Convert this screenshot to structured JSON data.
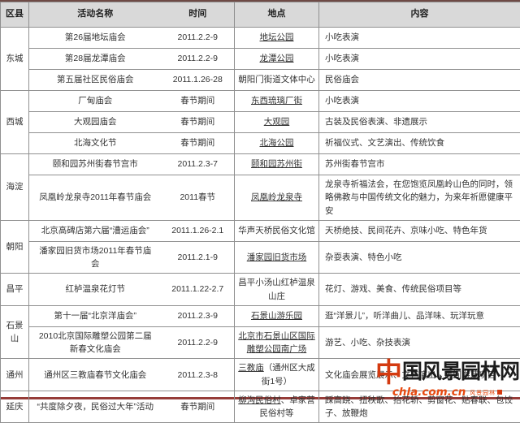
{
  "theme": {
    "header_bg": "#d9d9d9",
    "grid_border": "#909090",
    "bottom_rule": "#963c38",
    "text": "#333333",
    "link": "#333333",
    "watermark_accent": "#d43a10",
    "watermark_url_color": "#e8490f",
    "watermark_ink": "#1c1c1c"
  },
  "table": {
    "headers": [
      "区县",
      "活动名称",
      "时间",
      "地点",
      "内容"
    ],
    "groups": [
      {
        "district": "东城",
        "rows": [
          {
            "name": "第26届地坛庙会",
            "time": "2011.2.2-9",
            "place": [
              {
                "text": "地坛公园",
                "link": true
              }
            ],
            "content": "小吃表演"
          },
          {
            "name": "第28届龙潭庙会",
            "time": "2011.2.2-9",
            "place": [
              {
                "text": "龙潭公园",
                "link": true
              }
            ],
            "content": "小吃表演"
          },
          {
            "name": "第五届社区民俗庙会",
            "time": "2011.1.26-28",
            "place": [
              {
                "text": "朝阳门街道文体中心",
                "link": false
              }
            ],
            "content": "民俗庙会"
          }
        ]
      },
      {
        "district": "西城",
        "rows": [
          {
            "name": "厂甸庙会",
            "time": "春节期间",
            "place": [
              {
                "text": "东西琉璃厂街",
                "link": true
              }
            ],
            "content": "小吃表演"
          },
          {
            "name": "大观园庙会",
            "time": "春节期间",
            "place": [
              {
                "text": "大观园",
                "link": true
              }
            ],
            "content": "古装及民俗表演、非遗展示"
          },
          {
            "name": "北海文化节",
            "time": "春节期间",
            "place": [
              {
                "text": "北海公园",
                "link": true
              }
            ],
            "content": "祈福仪式、文艺演出、传统饮食"
          }
        ]
      },
      {
        "district": "海淀",
        "rows": [
          {
            "name": "颐和园苏州街春节宫市",
            "time": "2011.2.3-7",
            "place": [
              {
                "text": "颐和园苏州街",
                "link": true
              }
            ],
            "content": "苏州街春节宫市"
          },
          {
            "name": "凤凰岭龙泉寺2011年春节庙会",
            "time": "2011春节",
            "place": [
              {
                "text": "凤凰岭龙泉寺",
                "link": true
              }
            ],
            "content": "龙泉寺祈福法会，在您饱览凤凰岭山色的同时，领略佛教与中国传统文化的魅力，为来年祈愿健康平安"
          }
        ]
      },
      {
        "district": "朝阳",
        "rows": [
          {
            "name": "北京高碑店第六届“漕运庙会”",
            "time": "2011.1.26-2.1",
            "place": [
              {
                "text": "华声天桥民俗文化馆",
                "link": false
              }
            ],
            "content": "天桥绝技、民间花卉、京味小吃、特色年货"
          },
          {
            "name": "潘家园旧货市场2011年春节庙会",
            "time": "2011.2.1-9",
            "place": [
              {
                "text": "潘家园旧货市场",
                "link": true
              }
            ],
            "content": "杂耍表演、特色小吃"
          }
        ]
      },
      {
        "district": "昌平",
        "rows": [
          {
            "name": "红栌温泉花灯节",
            "time": "2011.1.22-2.7",
            "place": [
              {
                "text": "昌平小汤山红栌温泉山庄",
                "link": false
              }
            ],
            "content": "花灯、游戏、美食、传统民俗项目等"
          }
        ]
      },
      {
        "district": "石景山",
        "rows": [
          {
            "name": "第十一届“北京洋庙会”",
            "time": "2011.2.3-9",
            "place": [
              {
                "text": "石景山游乐园",
                "link": true
              }
            ],
            "content": "逛“洋景儿”，听洋曲儿、品洋味、玩洋玩意"
          },
          {
            "name": "2010北京国际雕塑公园第二届新春文化庙会",
            "time": "2011.2.2-9",
            "place": [
              {
                "text": "北京市石景山区国际雕塑公园南广场",
                "link": true
              }
            ],
            "content": "游艺、小吃、杂技表演"
          }
        ]
      },
      {
        "district": "通州",
        "rows": [
          {
            "name": "通州区三教庙春节文化庙会",
            "time": "2011.2.3-8",
            "place": [
              {
                "text": "三教庙",
                "link": true
              },
              {
                "text": "（通州区大成街1号）",
                "link": false
              }
            ],
            "content": "文化庙会展览展示、文艺演出、民间游艺项目"
          }
        ]
      },
      {
        "district": "延庆",
        "rows": [
          {
            "name": "“共度除夕夜，民俗过大年”活动",
            "time": "春节期间",
            "place": [
              {
                "text": "柳沟民俗村",
                "link": true
              },
              {
                "text": "、卓家营民俗村等",
                "link": false
              }
            ],
            "content": "踩高跷、扭秧歌、抬花轿、剪窗花、贴春联、包饺子、放鞭炮"
          }
        ]
      }
    ]
  },
  "watermark": {
    "site_name_first": "中",
    "site_name_rest": "国风景园林网",
    "url": "chla.com.cn",
    "seal_text": "风景园林"
  }
}
